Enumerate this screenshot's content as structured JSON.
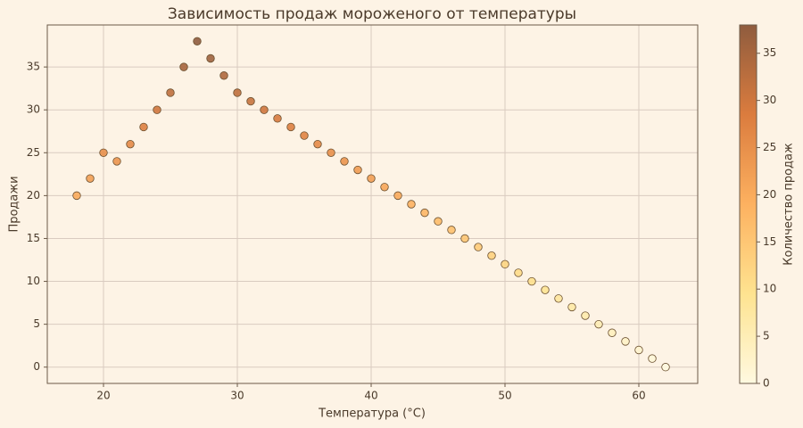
{
  "chart_data": {
    "type": "scatter",
    "title": "Зависимость продаж мороженого от температуры",
    "xlabel": "Температура (°C)",
    "ylabel": "Продажи",
    "x": [
      18,
      19,
      20,
      21,
      22,
      23,
      24,
      25,
      26,
      27,
      28,
      29,
      30,
      31,
      32,
      33,
      34,
      35,
      36,
      37,
      38,
      39,
      40,
      41,
      42,
      43,
      44,
      45,
      46,
      47,
      48,
      49,
      50,
      51,
      52,
      53,
      54,
      55,
      56,
      57,
      58,
      59,
      60,
      61,
      62
    ],
    "values": [
      20,
      22,
      25,
      24,
      26,
      28,
      30,
      32,
      35,
      38,
      36,
      34,
      32,
      31,
      30,
      29,
      28,
      27,
      26,
      25,
      24,
      23,
      22,
      21,
      20,
      19,
      18,
      17,
      16,
      15,
      14,
      13,
      12,
      11,
      10,
      9,
      8,
      7,
      6,
      5,
      4,
      3,
      2,
      1,
      0
    ],
    "xlim": [
      15.8,
      64.4
    ],
    "xticks": [
      20,
      30,
      40,
      50,
      60
    ],
    "ylim": [
      -1.9,
      39.9
    ],
    "yticks": [
      0,
      5,
      10,
      15,
      20,
      25,
      30,
      35
    ],
    "grid": true,
    "colormap": [
      "#fff9e0",
      "#fee390",
      "#fdb160",
      "#db7c3e",
      "#8f5c3e"
    ],
    "colorbar": {
      "label": "Количество продаж",
      "lim": [
        0,
        38
      ],
      "ticks": [
        0,
        5,
        10,
        15,
        20,
        25,
        30,
        35
      ]
    }
  }
}
